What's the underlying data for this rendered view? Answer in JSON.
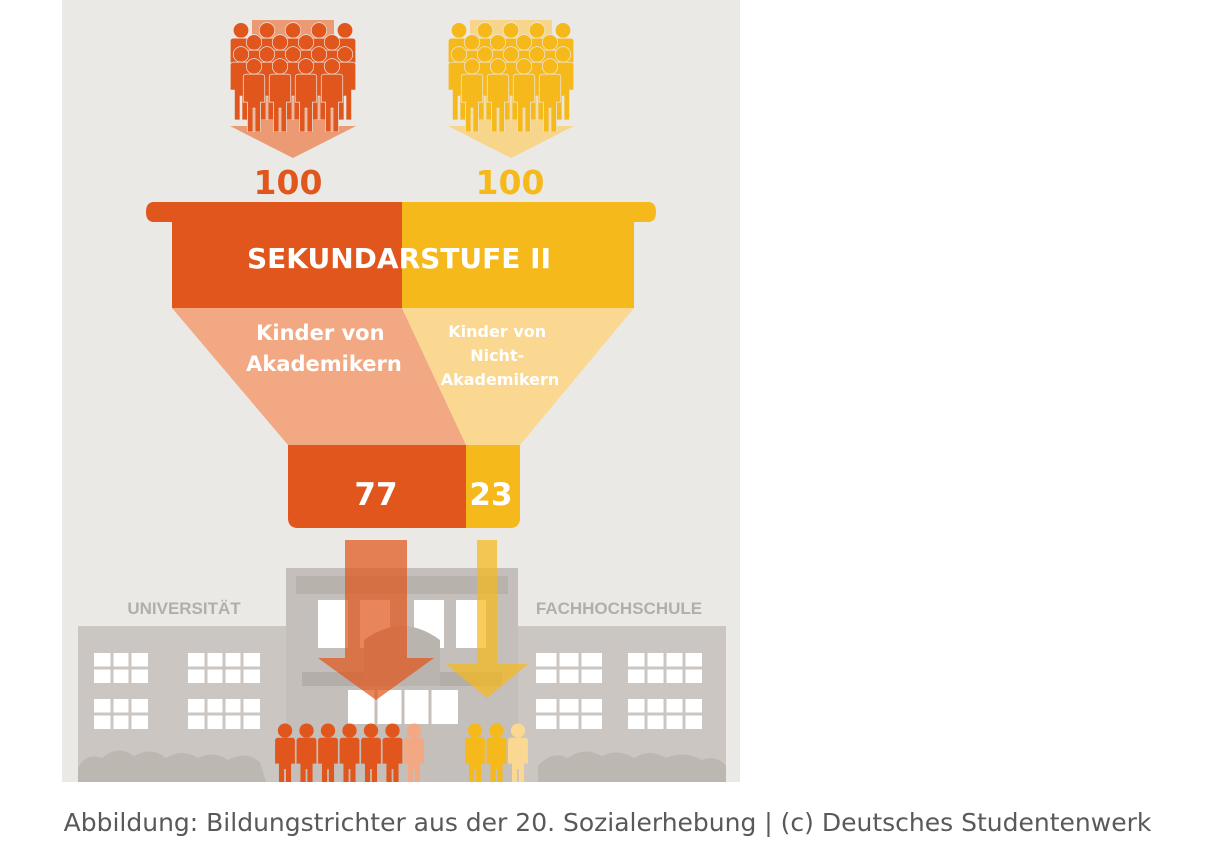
{
  "top_counts": {
    "akademiker": "100",
    "nicht_akademiker": "100"
  },
  "funnel": {
    "header": "SEKUNDARSTUFE II",
    "left_label": [
      "Kinder von",
      "Akademikern"
    ],
    "right_label": [
      "Kinder von",
      "Nicht-",
      "Akademikern"
    ]
  },
  "outcomes": {
    "akademiker": "77",
    "nicht_akademiker": "23"
  },
  "buildings": {
    "left": "UNIVERSITÄT",
    "right": "FACHHOCHSCHULE"
  },
  "caption": "Abbildung: Bildungstrichter aus der 20. Sozialerhebung | (c) Deutsches Studentenwerk",
  "colors": {
    "background": "#ebe9e6",
    "orange": "#e0561c",
    "orange_light": "#f2a882",
    "yellow": "#f5b91c",
    "yellow_light": "#fad891",
    "building": "#cbc6c1",
    "building_dark": "#bfbab4",
    "window": "#ffffff"
  },
  "chart_data": {
    "type": "funnel",
    "start": [
      {
        "group": "Kinder von Akademikern",
        "value": 100
      },
      {
        "group": "Kinder von Nicht-Akademikern",
        "value": 100
      }
    ],
    "stage": "SEKUNDARSTUFE II",
    "end": [
      {
        "group": "Kinder von Akademikern",
        "value": 77
      },
      {
        "group": "Kinder von Nicht-Akademikern",
        "value": 23
      }
    ],
    "destinations": [
      "UNIVERSITÄT",
      "FACHHOCHSCHULE"
    ]
  }
}
